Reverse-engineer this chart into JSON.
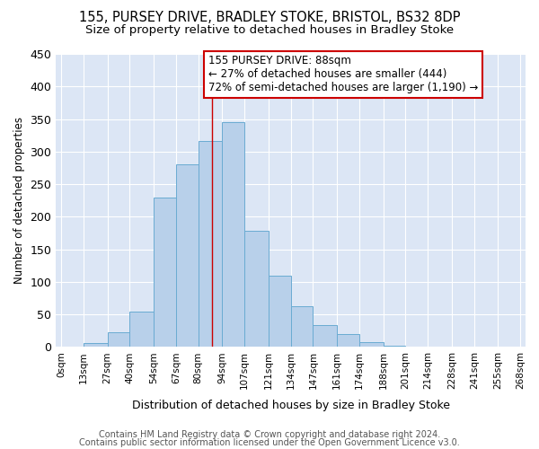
{
  "title": "155, PURSEY DRIVE, BRADLEY STOKE, BRISTOL, BS32 8DP",
  "subtitle": "Size of property relative to detached houses in Bradley Stoke",
  "xlabel": "Distribution of detached houses by size in Bradley Stoke",
  "ylabel": "Number of detached properties",
  "bar_edges": [
    0,
    13,
    27,
    40,
    54,
    67,
    80,
    94,
    107,
    121,
    134,
    147,
    161,
    174,
    188,
    201,
    214,
    228,
    241,
    255,
    268
  ],
  "bar_heights": [
    0,
    6,
    22,
    55,
    230,
    280,
    316,
    345,
    178,
    110,
    63,
    33,
    20,
    7,
    2,
    0,
    0,
    0,
    0,
    0
  ],
  "bar_color": "#b8d0ea",
  "bar_edge_color": "#6aabd2",
  "property_line_x": 88,
  "property_line_color": "#cc0000",
  "annotation_text": "155 PURSEY DRIVE: 88sqm\n← 27% of detached houses are smaller (444)\n72% of semi-detached houses are larger (1,190) →",
  "annotation_box_edge_color": "#cc0000",
  "annotation_box_face_color": "#ffffff",
  "ylim": [
    0,
    450
  ],
  "yticks": [
    0,
    50,
    100,
    150,
    200,
    250,
    300,
    350,
    400,
    450
  ],
  "tick_labels": [
    "0sqm",
    "13sqm",
    "27sqm",
    "40sqm",
    "54sqm",
    "67sqm",
    "80sqm",
    "94sqm",
    "107sqm",
    "121sqm",
    "134sqm",
    "147sqm",
    "161sqm",
    "174sqm",
    "188sqm",
    "201sqm",
    "214sqm",
    "228sqm",
    "241sqm",
    "255sqm",
    "268sqm"
  ],
  "footer_line1": "Contains HM Land Registry data © Crown copyright and database right 2024.",
  "footer_line2": "Contains public sector information licensed under the Open Government Licence v3.0.",
  "bg_color": "#ffffff",
  "plot_bg_color": "#dce6f5",
  "title_fontsize": 10.5,
  "subtitle_fontsize": 9.5,
  "annotation_fontsize": 8.5,
  "footer_fontsize": 7,
  "ylabel_fontsize": 8.5,
  "xlabel_fontsize": 9
}
